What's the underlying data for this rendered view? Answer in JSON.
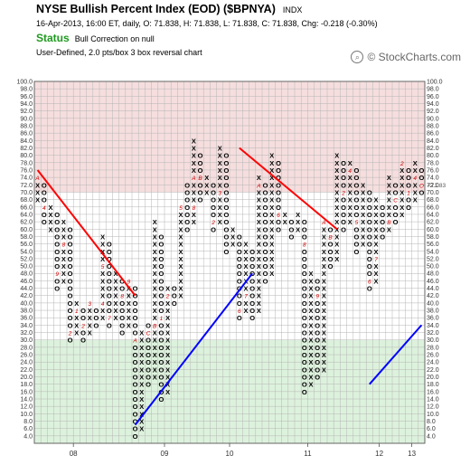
{
  "header": {
    "title": "NYSE Bullish Percent Index (EOD) ($BPNYA)",
    "exchange": "INDX",
    "quote_line": "16-Apr-2013, 16:00 ET, daily, O: 71.838, H: 71.838, L: 71.838, C: 71.838, Chg: -0.218 (-0.30%)",
    "status_label": "Status",
    "status_value": "Bull Correction on null",
    "method": "User-Defined, 2.0 pts/box 3 box reversal chart",
    "brand": "© StockCharts.com",
    "brand_icon": "search-icon"
  },
  "colors": {
    "overbought_zone": "#f6dede",
    "oversold_zone": "#ddf2dd",
    "grid": "#b5b5b5",
    "bearish_trendline": "#ff0000",
    "bullish_trendline": "#0000ff",
    "month_marker": "#cc0000",
    "title_status": "#1f9a1f"
  },
  "chart_data": {
    "type": "point-and-figure",
    "box_size": 2,
    "reversal": 3,
    "ylim": [
      2,
      100
    ],
    "y_ticks": [
      4,
      6,
      8,
      10,
      12,
      14,
      16,
      18,
      20,
      22,
      24,
      26,
      28,
      30,
      32,
      34,
      36,
      38,
      40,
      42,
      44,
      46,
      48,
      50,
      52,
      54,
      56,
      58,
      60,
      62,
      64,
      66,
      68,
      70,
      72,
      74,
      76,
      78,
      80,
      82,
      84,
      86,
      88,
      90,
      92,
      94,
      96,
      98,
      100
    ],
    "y_tick_labels": [
      "4.0",
      "6.0",
      "8.0",
      "10.0",
      "12.0",
      "14.0",
      "16.0",
      "18.0",
      "20.0",
      "22.0",
      "24.0",
      "26.0",
      "28.0",
      "30.0",
      "32.0",
      "34.0",
      "36.0",
      "38.0",
      "40.0",
      "42.0",
      "44.0",
      "46.0",
      "48.0",
      "50.0",
      "52.0",
      "54.0",
      "56.0",
      "58.0",
      "60.0",
      "62.0",
      "64.0",
      "66.0",
      "68.0",
      "70.0",
      "72.0",
      "74.0",
      "76.0",
      "78.0",
      "80.0",
      "82.0",
      "84.0",
      "86.0",
      "88.0",
      "90.0",
      "92.0",
      "94.0",
      "96.0",
      "98.0",
      "100.0"
    ],
    "zones": {
      "overbought_above": 70,
      "oversold_below": 30
    },
    "x_labels": [
      {
        "text": "08",
        "column": 6
      },
      {
        "text": "09",
        "column": 20
      },
      {
        "text": "10",
        "column": 30
      },
      {
        "text": "11",
        "column": 42
      },
      {
        "text": "12",
        "column": 53
      },
      {
        "text": "13",
        "column": 58
      }
    ],
    "columns": [
      {
        "t": "X",
        "lo": 68,
        "hi": 74,
        "m": {
          "74": "A"
        }
      },
      {
        "t": "O",
        "lo": 62,
        "hi": 72,
        "m": {
          "66": "4"
        }
      },
      {
        "t": "X",
        "lo": 60,
        "hi": 66
      },
      {
        "t": "O",
        "lo": 44,
        "hi": 64,
        "m": {
          "48": "9"
        }
      },
      {
        "t": "X",
        "lo": 46,
        "hi": 62,
        "m": {
          "56": "8"
        }
      },
      {
        "t": "O",
        "lo": 30,
        "hi": 60,
        "m": {
          "32": "2"
        }
      },
      {
        "t": "X",
        "lo": 32,
        "hi": 40,
        "m": {
          "38": "1"
        }
      },
      {
        "t": "O",
        "lo": 30,
        "hi": 38,
        "m": {
          "34": "2"
        }
      },
      {
        "t": "X",
        "lo": 32,
        "hi": 40,
        "m": {
          "40": "3"
        }
      },
      {
        "t": "O",
        "lo": 34,
        "hi": 38
      },
      {
        "t": "X",
        "lo": 36,
        "hi": 58,
        "m": {
          "40": "4",
          "50": "5"
        }
      },
      {
        "t": "O",
        "lo": 34,
        "hi": 56,
        "m": {
          "36": "7"
        }
      },
      {
        "t": "X",
        "lo": 36,
        "hi": 48
      },
      {
        "t": "O",
        "lo": 32,
        "hi": 46,
        "m": {
          "42": "8"
        }
      },
      {
        "t": "X",
        "lo": 34,
        "hi": 46,
        "m": {
          "46": "9"
        }
      },
      {
        "t": "O",
        "lo": 4,
        "hi": 44,
        "m": {
          "30": "A"
        }
      },
      {
        "t": "X",
        "lo": 6,
        "hi": 32
      },
      {
        "t": "O",
        "lo": 18,
        "hi": 34,
        "m": {
          "32": "C"
        }
      },
      {
        "t": "X",
        "lo": 20,
        "hi": 62,
        "m": {
          "34": "B"
        }
      },
      {
        "t": "O",
        "lo": 14,
        "hi": 58,
        "m": {
          "36": "1"
        }
      },
      {
        "t": "X",
        "lo": 16,
        "hi": 44,
        "m": {
          "42": "2"
        }
      },
      {
        "t": "O",
        "lo": 40,
        "hi": 44
      },
      {
        "t": "X",
        "lo": 42,
        "hi": 66,
        "m": {
          "66": "5"
        }
      },
      {
        "t": "O",
        "lo": 60,
        "hi": 72
      },
      {
        "t": "X",
        "lo": 62,
        "hi": 84,
        "m": {
          "66": "8",
          "74": "A"
        }
      },
      {
        "t": "O",
        "lo": 68,
        "hi": 80,
        "m": {
          "74": "B"
        }
      },
      {
        "t": "X",
        "lo": 70,
        "hi": 74
      },
      {
        "t": "O",
        "lo": 60,
        "hi": 72,
        "m": {
          "62": "2"
        }
      },
      {
        "t": "X",
        "lo": 62,
        "hi": 82,
        "m": {
          "70": "3"
        }
      },
      {
        "t": "O",
        "lo": 54,
        "hi": 80
      },
      {
        "t": "X",
        "lo": 56,
        "hi": 60
      },
      {
        "t": "O",
        "lo": 36,
        "hi": 58,
        "m": {
          "38": "6"
        }
      },
      {
        "t": "X",
        "lo": 38,
        "hi": 56,
        "m": {
          "42": "7"
        }
      },
      {
        "t": "O",
        "lo": 36,
        "hi": 54
      },
      {
        "t": "X",
        "lo": 38,
        "hi": 74,
        "m": {
          "72": "A"
        }
      },
      {
        "t": "O",
        "lo": 46,
        "hi": 72
      },
      {
        "t": "X",
        "lo": 48,
        "hi": 80
      },
      {
        "t": "O",
        "lo": 60,
        "hi": 78,
        "m": {
          "64": "6"
        }
      },
      {
        "t": "X",
        "lo": 62,
        "hi": 64
      },
      {
        "t": "O",
        "lo": 58,
        "hi": 62
      },
      {
        "t": "X",
        "lo": 60,
        "hi": 64
      },
      {
        "t": "O",
        "lo": 16,
        "hi": 62,
        "m": {
          "56": "8"
        }
      },
      {
        "t": "X",
        "lo": 18,
        "hi": 48
      },
      {
        "t": "O",
        "lo": 20,
        "hi": 46,
        "m": {
          "42": "9"
        }
      },
      {
        "t": "X",
        "lo": 22,
        "hi": 62,
        "m": {
          "62": "A"
        }
      },
      {
        "t": "O",
        "lo": 50,
        "hi": 60,
        "m": {
          "58": "B"
        }
      },
      {
        "t": "X",
        "lo": 52,
        "hi": 80,
        "m": {
          "46": "C"
        }
      },
      {
        "t": "O",
        "lo": 60,
        "hi": 78,
        "m": {
          "70": "2"
        }
      },
      {
        "t": "X",
        "lo": 62,
        "hi": 78,
        "m": {
          "76": "4"
        }
      },
      {
        "t": "O",
        "lo": 54,
        "hi": 76,
        "m": {
          "62": "5"
        }
      },
      {
        "t": "X",
        "lo": 56,
        "hi": 72
      },
      {
        "t": "O",
        "lo": 44,
        "hi": 70,
        "m": {
          "46": "6"
        }
      },
      {
        "t": "X",
        "lo": 46,
        "hi": 68,
        "m": {
          "52": "7"
        }
      },
      {
        "t": "O",
        "lo": 58,
        "hi": 66
      },
      {
        "t": "X",
        "lo": 60,
        "hi": 74,
        "m": {
          "62": "B"
        }
      },
      {
        "t": "O",
        "lo": 62,
        "hi": 72,
        "m": {
          "68": "C"
        }
      },
      {
        "t": "X",
        "lo": 64,
        "hi": 78,
        "m": {
          "78": "2"
        }
      },
      {
        "t": "O",
        "lo": 66,
        "hi": 76,
        "m": {
          "70": "1"
        }
      },
      {
        "t": "X",
        "lo": 68,
        "hi": 78,
        "m": {
          "74": "4"
        }
      },
      {
        "t": "O",
        "lo": 70,
        "hi": 76,
        "m": {
          "72": "O"
        }
      }
    ],
    "trendlines": [
      {
        "kind": "bearish-resistance",
        "from": {
          "column": 0,
          "value": 76
        },
        "to": {
          "column": 15,
          "value": 42
        }
      },
      {
        "kind": "bullish-support",
        "from": {
          "column": 15,
          "value": 7
        },
        "to": {
          "column": 33,
          "value": 48
        }
      },
      {
        "kind": "bearish-resistance",
        "from": {
          "column": 31,
          "value": 82
        },
        "to": {
          "column": 46,
          "value": 60
        }
      },
      {
        "kind": "bullish-support",
        "from": {
          "column": 51,
          "value": 18
        },
        "to": {
          "column": 59,
          "value": 34
        }
      }
    ],
    "current_value_label": "71.83"
  }
}
